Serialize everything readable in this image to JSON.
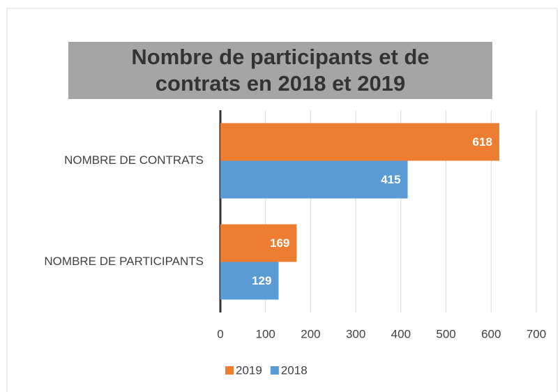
{
  "chart_data": {
    "type": "bar",
    "orientation": "horizontal",
    "title": "Nombre de participants et de contrats en 2018 et 2019",
    "categories": [
      "NOMBRE DE CONTRATS",
      "NOMBRE DE PARTICIPANTS"
    ],
    "series": [
      {
        "name": "2019",
        "color": "#ed7d31",
        "values": [
          618,
          169
        ]
      },
      {
        "name": "2018",
        "color": "#5b9bd5",
        "values": [
          415,
          129
        ]
      }
    ],
    "xlim": [
      0,
      700
    ],
    "xticks": [
      0,
      100,
      200,
      300,
      400,
      500,
      600,
      700
    ],
    "grid": true,
    "legend": "bottom"
  }
}
